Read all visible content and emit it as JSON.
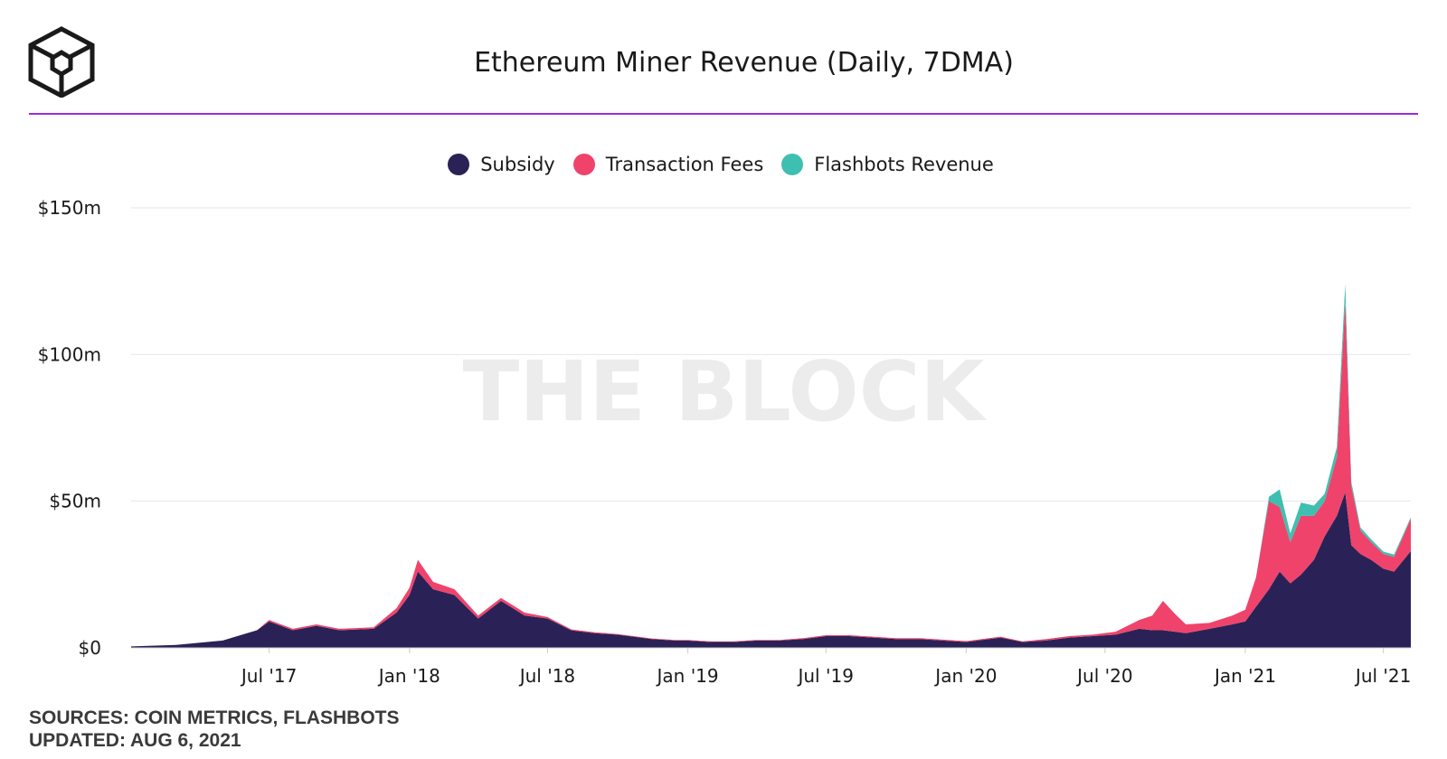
{
  "header": {
    "title": "Ethereum Miner Revenue (Daily, 7DMA)",
    "logo_icon": "the-block-cube-logo"
  },
  "legend": [
    {
      "label": "Subsidy",
      "color": "#2a2256"
    },
    {
      "label": "Transaction Fees",
      "color": "#f0436b"
    },
    {
      "label": "Flashbots Revenue",
      "color": "#3fbfb0"
    }
  ],
  "watermark": "THE BLOCK",
  "footer": {
    "sources": "SOURCES: COIN METRICS, FLASHBOTS",
    "updated": "UPDATED: AUG 6, 2021"
  },
  "chart_data": {
    "type": "area",
    "stacked": true,
    "ylim": [
      0,
      150
    ],
    "y_ticks": [
      0,
      50,
      100,
      150
    ],
    "y_tick_labels": [
      "$0",
      "$50m",
      "$100m",
      "$150m"
    ],
    "x_range": [
      "2017-01-01",
      "2021-08-06"
    ],
    "x_ticks": [
      "2017-07-01",
      "2018-01-01",
      "2018-07-01",
      "2019-01-01",
      "2019-07-01",
      "2020-01-01",
      "2020-07-01",
      "2021-01-01",
      "2021-07-01"
    ],
    "x_tick_labels": [
      "Jul '17",
      "Jan '18",
      "Jul '18",
      "Jan '19",
      "Jul '19",
      "Jan '20",
      "Jul '20",
      "Jan '21",
      "Jul '21"
    ],
    "grid": true,
    "legend_position": "top-center",
    "x": [
      "2017-01-01",
      "2017-03-01",
      "2017-05-01",
      "2017-06-15",
      "2017-07-01",
      "2017-08-01",
      "2017-09-01",
      "2017-10-01",
      "2017-11-15",
      "2017-12-15",
      "2018-01-01",
      "2018-01-12",
      "2018-02-01",
      "2018-03-01",
      "2018-04-01",
      "2018-05-01",
      "2018-06-01",
      "2018-07-01",
      "2018-08-01",
      "2018-09-01",
      "2018-10-01",
      "2018-11-15",
      "2018-12-15",
      "2019-01-01",
      "2019-02-01",
      "2019-03-01",
      "2019-04-01",
      "2019-05-01",
      "2019-06-01",
      "2019-07-01",
      "2019-08-01",
      "2019-09-01",
      "2019-10-01",
      "2019-11-01",
      "2019-12-01",
      "2020-01-01",
      "2020-02-15",
      "2020-03-15",
      "2020-04-15",
      "2020-05-15",
      "2020-06-15",
      "2020-07-15",
      "2020-08-15",
      "2020-09-01",
      "2020-09-15",
      "2020-10-01",
      "2020-10-15",
      "2020-11-15",
      "2020-12-15",
      "2021-01-01",
      "2021-01-15",
      "2021-02-01",
      "2021-02-15",
      "2021-03-01",
      "2021-03-15",
      "2021-04-01",
      "2021-04-15",
      "2021-05-01",
      "2021-05-12",
      "2021-05-20",
      "2021-06-01",
      "2021-06-15",
      "2021-07-01",
      "2021-07-15",
      "2021-08-06"
    ],
    "series": [
      {
        "name": "Subsidy",
        "color": "#2a2256",
        "values": [
          0.5,
          1.0,
          2.5,
          6.0,
          9.0,
          6.0,
          7.5,
          6.0,
          6.5,
          12.0,
          18.0,
          26.0,
          20.0,
          18.0,
          10.0,
          16.0,
          11.0,
          10.0,
          6.0,
          5.0,
          4.5,
          3.0,
          2.5,
          2.5,
          2.0,
          2.0,
          2.5,
          2.5,
          3.0,
          4.0,
          4.0,
          3.5,
          3.0,
          3.0,
          2.5,
          2.0,
          3.5,
          2.0,
          2.5,
          3.5,
          4.0,
          4.5,
          6.5,
          6.0,
          6.0,
          5.5,
          5.0,
          6.5,
          8.0,
          9.0,
          14.0,
          20.0,
          26.0,
          22.0,
          25.0,
          30.0,
          38.0,
          45.0,
          53.0,
          35.0,
          32.0,
          30.0,
          27.0,
          26.0,
          33.0
        ]
      },
      {
        "name": "Transaction Fees",
        "color": "#f0436b",
        "values": [
          0,
          0,
          0,
          0,
          0.5,
          0.5,
          0.5,
          0.5,
          0.5,
          1.5,
          2.5,
          4.0,
          2.5,
          2.0,
          1.0,
          1.0,
          1.0,
          0.5,
          0.3,
          0.3,
          0.2,
          0.2,
          0.2,
          0.2,
          0.2,
          0.2,
          0.2,
          0.2,
          0.3,
          0.3,
          0.3,
          0.3,
          0.3,
          0.3,
          0.3,
          0.3,
          0.3,
          0.2,
          0.5,
          0.5,
          0.5,
          1.0,
          3.0,
          5.0,
          10.0,
          6.0,
          3.0,
          2.0,
          3.0,
          4.0,
          10.0,
          30.0,
          22.0,
          14.0,
          20.0,
          15.0,
          12.0,
          20.0,
          65.0,
          20.0,
          8.0,
          6.0,
          5.0,
          5.0,
          11.0
        ]
      },
      {
        "name": "Flashbots Revenue",
        "color": "#3fbfb0",
        "values": [
          0,
          0,
          0,
          0,
          0,
          0,
          0,
          0,
          0,
          0,
          0,
          0,
          0,
          0,
          0,
          0,
          0,
          0,
          0,
          0,
          0,
          0,
          0,
          0,
          0,
          0,
          0,
          0,
          0,
          0,
          0,
          0,
          0,
          0,
          0,
          0,
          0,
          0,
          0,
          0,
          0,
          0,
          0,
          0,
          0,
          0,
          0,
          0,
          0,
          0,
          0,
          1.5,
          6.0,
          3.0,
          4.5,
          3.5,
          2.5,
          3.5,
          6.0,
          1.5,
          1.0,
          1.0,
          0.8,
          0.8,
          0.5
        ]
      }
    ]
  }
}
